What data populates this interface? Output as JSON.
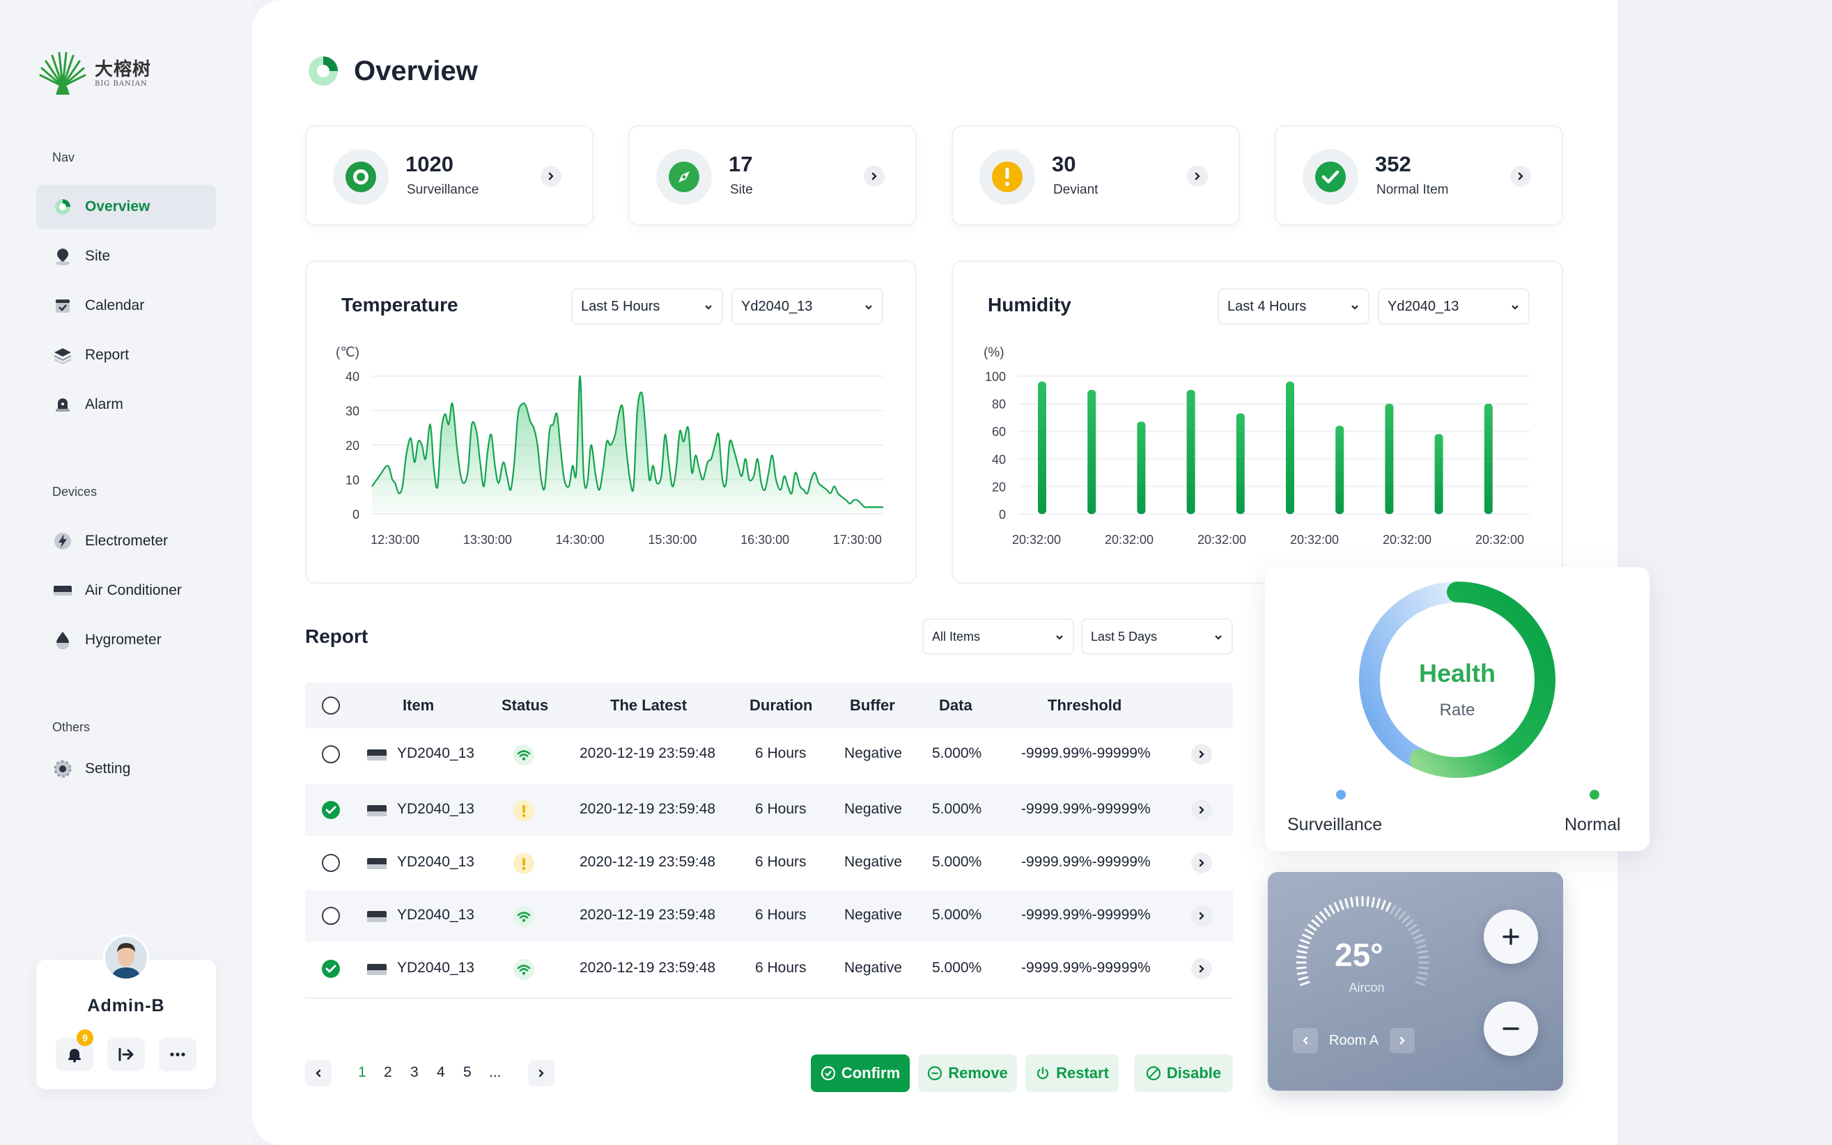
{
  "brand": {
    "name_cn": "大榕树",
    "name_en": "BIG BANIAN"
  },
  "sidebar": {
    "sections": [
      {
        "title": "Nav",
        "items": [
          {
            "label": "Overview",
            "icon": "overview-icon",
            "active": true
          },
          {
            "label": "Site",
            "icon": "pin-icon"
          },
          {
            "label": "Calendar",
            "icon": "calendar-icon"
          },
          {
            "label": "Report",
            "icon": "layers-icon"
          },
          {
            "label": "Alarm",
            "icon": "alarm-icon"
          }
        ]
      },
      {
        "title": "Devices",
        "items": [
          {
            "label": "Electrometer",
            "icon": "lightning-icon"
          },
          {
            "label": "Air Conditioner",
            "icon": "aircon-icon"
          },
          {
            "label": "Hygrometer",
            "icon": "drop-icon"
          }
        ]
      },
      {
        "title": "Others",
        "items": [
          {
            "label": "Setting",
            "icon": "gear-icon"
          }
        ]
      }
    ],
    "user": {
      "name": "Admin-B",
      "notifications": "9"
    }
  },
  "header": {
    "title": "Overview"
  },
  "stats": [
    {
      "value": "1020",
      "label": "Surveillance",
      "icon": "eye-icon",
      "color": "#1f9a45"
    },
    {
      "value": "17",
      "label": "Site",
      "icon": "compass-icon",
      "color": "#2eaa4c"
    },
    {
      "value": "30",
      "label": "Deviant",
      "icon": "warning-icon",
      "color": "#f7b500"
    },
    {
      "value": "352",
      "label": "Normal Item",
      "icon": "check-icon",
      "color": "#1aa34a"
    }
  ],
  "temperature": {
    "title": "Temperature",
    "range": "Last 5 Hours",
    "device": "Yd2040_13",
    "unit": "(℃)",
    "chart_data": {
      "type": "area",
      "title": "Temperature",
      "ylabel": "(℃)",
      "ylim": [
        0,
        40
      ],
      "yticks": [
        0,
        10,
        20,
        30,
        40
      ],
      "xticks": [
        "12:30:00",
        "13:30:00",
        "14:30:00",
        "15:30:00",
        "16:30:00",
        "17:30:00"
      ],
      "x_range": [
        12.25,
        17.78
      ],
      "x": [
        12.25,
        12.33,
        12.42,
        12.47,
        12.5,
        12.54,
        12.58,
        12.62,
        12.67,
        12.71,
        12.75,
        12.79,
        12.83,
        12.88,
        12.92,
        12.96,
        13.0,
        13.04,
        13.08,
        13.12,
        13.17,
        13.21,
        13.25,
        13.29,
        13.33,
        13.38,
        13.42,
        13.46,
        13.5,
        13.54,
        13.58,
        13.62,
        13.67,
        13.71,
        13.75,
        13.79,
        13.83,
        13.88,
        13.92,
        13.96,
        14.0,
        14.04,
        14.08,
        14.12,
        14.17,
        14.21,
        14.25,
        14.29,
        14.33,
        14.38,
        14.42,
        14.46,
        14.5,
        14.54,
        14.58,
        14.62,
        14.67,
        14.71,
        14.75,
        14.79,
        14.83,
        14.88,
        14.92,
        14.96,
        15.0,
        15.04,
        15.08,
        15.12,
        15.17,
        15.21,
        15.25,
        15.29,
        15.33,
        15.38,
        15.42,
        15.46,
        15.5,
        15.54,
        15.58,
        15.62,
        15.67,
        15.71,
        15.75,
        15.79,
        15.83,
        15.88,
        15.92,
        15.96,
        16.0,
        16.04,
        16.08,
        16.12,
        16.17,
        16.21,
        16.25,
        16.29,
        16.33,
        16.38,
        16.42,
        16.46,
        16.5,
        16.54,
        16.58,
        16.62,
        16.67,
        16.71,
        16.75,
        16.79,
        16.83,
        16.88,
        16.92,
        16.96,
        17.0,
        17.04,
        17.08,
        17.12,
        17.17,
        17.21,
        17.25,
        17.29,
        17.33,
        17.38,
        17.42,
        17.46,
        17.5,
        17.54,
        17.58,
        17.62,
        17.67,
        17.71,
        17.75,
        17.78
      ],
      "y": [
        8,
        11,
        14,
        10,
        9,
        6,
        8,
        17,
        22,
        15,
        21,
        20,
        16,
        26,
        13,
        8,
        24,
        29,
        26,
        32,
        19,
        11,
        9,
        13,
        26,
        24,
        15,
        8,
        18,
        23,
        14,
        9,
        15,
        11,
        7,
        15,
        29,
        32,
        31,
        27,
        25,
        20,
        10,
        8,
        24,
        26,
        29,
        19,
        10,
        8,
        14,
        12,
        40,
        11,
        9,
        20,
        11,
        7,
        13,
        21,
        20,
        23,
        29,
        31,
        19,
        10,
        8,
        30,
        35,
        24,
        10,
        14,
        9,
        11,
        23,
        15,
        8,
        13,
        24,
        21,
        25,
        12,
        17,
        13,
        10,
        15,
        16,
        20,
        23,
        10,
        9,
        21,
        18,
        14,
        11,
        16,
        10,
        11,
        16,
        9,
        7,
        12,
        17,
        10,
        7,
        11,
        8,
        6,
        12,
        8,
        7,
        6,
        10,
        12,
        9,
        8,
        7,
        6,
        8,
        6,
        5,
        4,
        3,
        4,
        4,
        3,
        2,
        2,
        2,
        2,
        2,
        2
      ],
      "series": [
        {
          "name": ""
        }
      ]
    }
  },
  "humidity": {
    "title": "Humidity",
    "range": "Last 4 Hours",
    "device": "Yd2040_13",
    "unit": "(%)",
    "chart_data": {
      "type": "bar",
      "title": "Humidity",
      "ylabel": "(%)",
      "ylim": [
        0,
        100
      ],
      "yticks": [
        0,
        20,
        40,
        60,
        80,
        100
      ],
      "xticks": [
        "20:32:00",
        "20:32:00",
        "20:32:00",
        "20:32:00",
        "20:32:00",
        "20:32:00"
      ],
      "values": [
        96,
        90,
        67,
        90,
        73,
        96,
        64,
        80,
        58,
        80
      ]
    }
  },
  "report": {
    "title": "Report",
    "filter_items": "All Items",
    "filter_range": "Last 5 Days",
    "columns": [
      "Item",
      "Status",
      "The Latest",
      "Duration",
      "Buffer",
      "Data",
      "Threshold"
    ],
    "rows": [
      {
        "checked": false,
        "item": "YD2040_13",
        "status": "online",
        "latest": "2020-12-19 23:59:48",
        "duration": "6 Hours",
        "buffer": "Negative",
        "data": "5.000%",
        "threshold": "-9999.99%-99999%"
      },
      {
        "checked": true,
        "item": "YD2040_13",
        "status": "warning",
        "latest": "2020-12-19 23:59:48",
        "duration": "6 Hours",
        "buffer": "Negative",
        "data": "5.000%",
        "threshold": "-9999.99%-99999%"
      },
      {
        "checked": false,
        "item": "YD2040_13",
        "status": "warning",
        "latest": "2020-12-19 23:59:48",
        "duration": "6 Hours",
        "buffer": "Negative",
        "data": "5.000%",
        "threshold": "-9999.99%-99999%"
      },
      {
        "checked": false,
        "item": "YD2040_13",
        "status": "online",
        "latest": "2020-12-19 23:59:48",
        "duration": "6 Hours",
        "buffer": "Negative",
        "data": "5.000%",
        "threshold": "-9999.99%-99999%"
      },
      {
        "checked": true,
        "item": "YD2040_13",
        "status": "online",
        "latest": "2020-12-19 23:59:48",
        "duration": "6 Hours",
        "buffer": "Negative",
        "data": "5.000%",
        "threshold": "-9999.99%-99999%"
      }
    ],
    "pages": [
      "1",
      "2",
      "3",
      "4",
      "5",
      "..."
    ],
    "current_page": "1",
    "actions": {
      "confirm": "Confirm",
      "remove": "Remove",
      "restart": "Restart",
      "disable": "Disable"
    }
  },
  "health": {
    "title": "Health",
    "subtitle": "Rate",
    "legend": [
      {
        "label": "Surveillance",
        "color": "#6aaef2"
      },
      {
        "label": "Normal",
        "color": "#2cb553"
      }
    ]
  },
  "aircon": {
    "temperature": "25°",
    "label": "Aircon",
    "room": "Room A",
    "level": 0.62
  }
}
